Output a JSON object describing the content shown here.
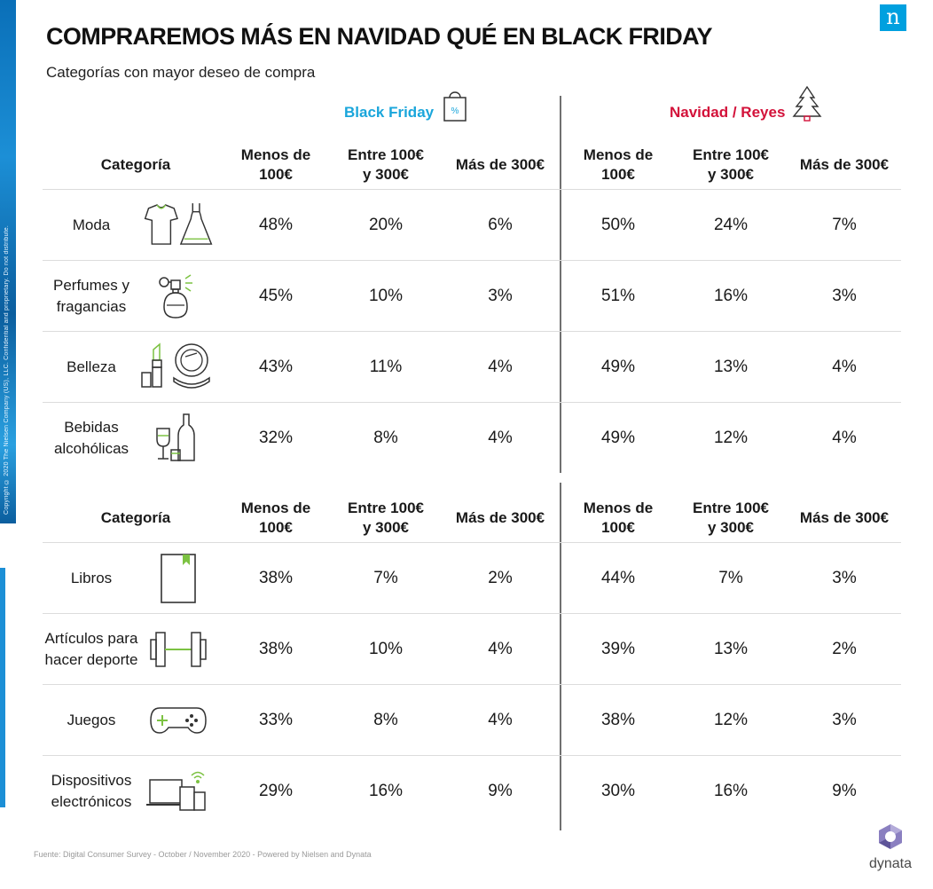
{
  "copyright": "Copyright © 2020 The Nielsen Company (US), LLC. Confidential and proprietary. Do not distribute.",
  "brand": {
    "nielsen_glyph": "n",
    "dynata": "dynata"
  },
  "title": "COMPRAREMOS MÁS EN NAVIDAD QUÉ EN BLACK FRIDAY",
  "subtitle": "Categorías con mayor deseo de compra",
  "groups": {
    "black_friday": "Black Friday",
    "navidad": "Navidad / Reyes",
    "bag_percent": "%"
  },
  "headers": {
    "category": "Categoría",
    "columns": [
      "Menos de\n100€",
      "Entre 100€\ny 300€",
      "Más de 300€",
      "Menos de\n100€",
      "Entre 100€\ny 300€",
      "Más de 300€"
    ]
  },
  "table_top": [
    {
      "category": "Moda",
      "icon": "clothing-icon",
      "values": [
        "48%",
        "20%",
        "6%",
        "50%",
        "24%",
        "7%"
      ]
    },
    {
      "category": "Perfumes y\nfragancias",
      "icon": "perfume-icon",
      "values": [
        "45%",
        "10%",
        "3%",
        "51%",
        "16%",
        "3%"
      ]
    },
    {
      "category": "Belleza",
      "icon": "makeup-icon",
      "values": [
        "43%",
        "11%",
        "4%",
        "49%",
        "13%",
        "4%"
      ]
    },
    {
      "category": "Bebidas\nalcohólicas",
      "icon": "bottles-icon",
      "values": [
        "32%",
        "8%",
        "4%",
        "49%",
        "12%",
        "4%"
      ]
    }
  ],
  "table_bottom": [
    {
      "category": "Libros",
      "icon": "book-icon",
      "values": [
        "38%",
        "7%",
        "2%",
        "44%",
        "7%",
        "3%"
      ]
    },
    {
      "category": "Artículos para\nhacer deporte",
      "icon": "dumbbell-icon",
      "values": [
        "38%",
        "10%",
        "4%",
        "39%",
        "13%",
        "2%"
      ]
    },
    {
      "category": "Juegos",
      "icon": "gamepad-icon",
      "values": [
        "33%",
        "8%",
        "4%",
        "38%",
        "12%",
        "3%"
      ]
    },
    {
      "category": "Dispositivos\nelectrónicos",
      "icon": "devices-icon",
      "values": [
        "29%",
        "16%",
        "9%",
        "30%",
        "16%",
        "9%"
      ]
    }
  ],
  "source": "Fuente: Digital Consumer Survey - October / November 2020 - Powered by Nielsen and Dynata",
  "colors": {
    "black_friday": "#1aa6db",
    "navidad": "#d3123a",
    "icon_accent": "#7cc242",
    "nielsen": "#00a0df"
  }
}
